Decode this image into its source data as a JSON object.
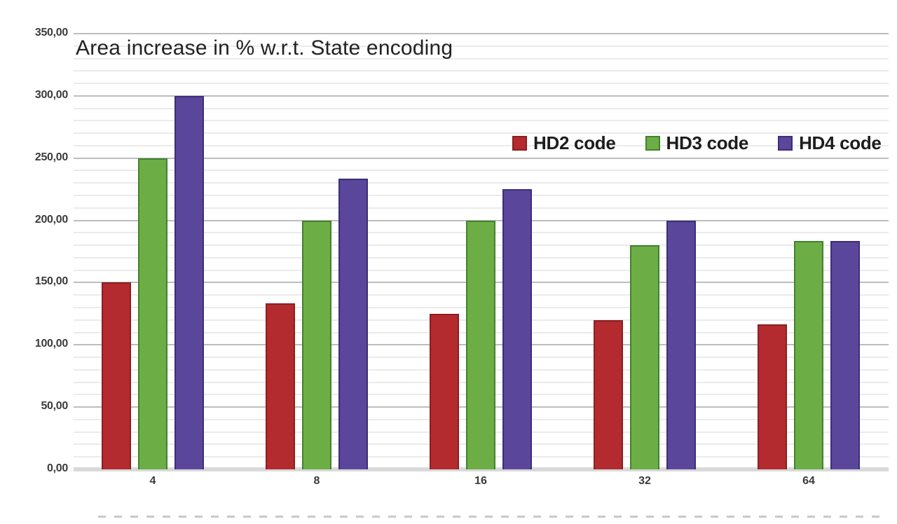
{
  "chart_data": {
    "type": "bar",
    "title": "Area increase in % w.r.t. State encoding",
    "xlabel": "",
    "ylabel": "",
    "categories": [
      "4",
      "8",
      "16",
      "32",
      "64"
    ],
    "series": [
      {
        "name": "HD2 code",
        "color": "#b32b2e",
        "border_color": "#8c1e21",
        "values": [
          150,
          133.33,
          125,
          120,
          116.67
        ]
      },
      {
        "name": "HD3 code",
        "color": "#6cae45",
        "border_color": "#43812f",
        "values": [
          250,
          200,
          200,
          180,
          183.33
        ]
      },
      {
        "name": "HD4 code",
        "color": "#5a479b",
        "border_color": "#3c2e78",
        "values": [
          300,
          233.33,
          225,
          200,
          183.33
        ]
      }
    ],
    "ylim": [
      0,
      350
    ],
    "y_major_step": 50,
    "y_minor_step": 10,
    "y_tick_labels": [
      "0,00",
      "50,00",
      "100,00",
      "150,00",
      "200,00",
      "250,00",
      "300,00",
      "350,00"
    ],
    "decimal_separator": ",",
    "grid": "horizontal, major and minor, on",
    "legend_position": "inside top-right",
    "plot_background": "#ffffff"
  }
}
